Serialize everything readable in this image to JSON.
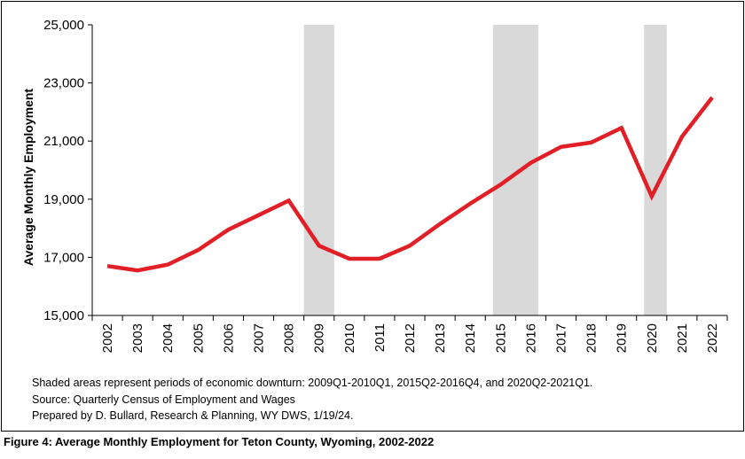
{
  "chart_data": {
    "type": "line",
    "title": "",
    "xlabel": "",
    "ylabel": "Average Monthly Employment",
    "ylim": [
      15000,
      25000
    ],
    "yticks": [
      15000,
      17000,
      19000,
      21000,
      23000,
      25000
    ],
    "ytick_labels": [
      "15,000",
      "17,000",
      "19,000",
      "21,000",
      "23,000",
      "25,000"
    ],
    "grid": false,
    "legend": "none",
    "categories": [
      "2002",
      "2003",
      "2004",
      "2005",
      "2006",
      "2007",
      "2008",
      "2009",
      "2010",
      "2011",
      "2012",
      "2013",
      "2014",
      "2015",
      "2016",
      "2017",
      "2018",
      "2019",
      "2020",
      "2021",
      "2022"
    ],
    "series": [
      {
        "color": "#e21f26",
        "values": [
          16700,
          16550,
          16750,
          17250,
          17950,
          18450,
          18950,
          17400,
          16950,
          16950,
          17400,
          18150,
          18850,
          19500,
          20250,
          20800,
          20950,
          21450,
          19100,
          21150,
          22500
        ]
      }
    ],
    "recessions": [
      {
        "label": "2009Q1-2010Q1",
        "start": 2009.0,
        "end": 2010.0
      },
      {
        "label": "2015Q2-2016Q4",
        "start": 2015.25,
        "end": 2016.75
      },
      {
        "label": "2020Q2-2021Q1",
        "start": 2020.25,
        "end": 2021.0
      }
    ],
    "recession_color": "#d9d9d9"
  },
  "notes": {
    "line1": "Shaded areas represent periods of economic downturn: 2009Q1-2010Q1, 2015Q2-2016Q4, and 2020Q2-2021Q1.",
    "line2": "Source: Quarterly Census of Employment and Wages",
    "line3": "Prepared by D. Bullard, Research & Planning, WY DWS, 1/19/24."
  },
  "caption": "Figure 4: Average Monthly Employment for Teton County, Wyoming, 2002-2022"
}
